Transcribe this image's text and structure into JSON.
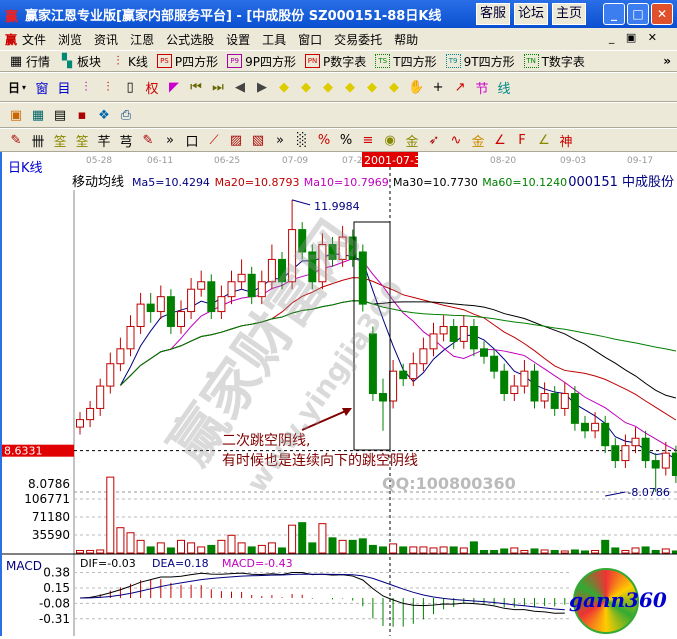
{
  "window": {
    "title": "赢家江恩专业版[赢家内部服务平台] - [中成股份   SZ000151-88日K线",
    "buttons": [
      "客服",
      "论坛",
      "主页"
    ],
    "controls": [
      "minimize",
      "maximize",
      "close"
    ]
  },
  "menu": {
    "items": [
      "文件",
      "浏览",
      "资讯",
      "江恩",
      "公式选股",
      "设置",
      "工具",
      "窗口",
      "交易委托",
      "帮助"
    ]
  },
  "toolbar1": {
    "items": [
      {
        "icon": "table-icon",
        "label": "行情"
      },
      {
        "icon": "blocks-icon",
        "label": "板块"
      },
      {
        "icon": "kline-icon",
        "label": "K线"
      },
      {
        "icon": "PS",
        "label": "P四方形",
        "color": "#c00000"
      },
      {
        "icon": "P9",
        "label": "9P四方形",
        "color": "#a000a0"
      },
      {
        "icon": "PN",
        "label": "P数字表",
        "color": "#c00000"
      },
      {
        "icon": "TS",
        "label": "T四方形",
        "color": "#008000"
      },
      {
        "icon": "T9",
        "label": "9T四方形",
        "color": "#008080"
      },
      {
        "icon": "TN",
        "label": "T数字表",
        "color": "#008000"
      }
    ]
  },
  "toolbar2": {
    "period": "日",
    "icons": [
      "window-icon",
      "notes-icon",
      "chart3-icon",
      "chart9-icon",
      "candle-icon",
      "rights-icon",
      "flag-icon",
      "first-icon",
      "last-icon",
      "left-icon",
      "right-icon",
      "diamond1-icon",
      "diamond2-icon",
      "diamond3-icon",
      "diamond4-icon",
      "diamond5-icon",
      "diamond6-icon",
      "hand-icon",
      "crosshair-icon",
      "line-tool-icon",
      "festival-icon",
      "cycle-icon"
    ]
  },
  "toolbar3": {
    "icons": [
      "calendar-icon",
      "calculator-icon",
      "document-icon",
      "save-icon",
      "network-icon",
      "printer-icon"
    ]
  },
  "toolbar4": {
    "icons": [
      "pen-icon",
      "grid-icon",
      "gold1-icon",
      "gold2-icon",
      "fan-icon",
      "spiral-icon",
      "pen2-icon",
      "box-icon",
      "rays-icon",
      "square-icon",
      "angle-icon",
      "ruler-icon",
      "percent-line-icon",
      "percent-icon",
      "percent2-icon",
      "gold-coin-icon",
      "gold-lines-icon",
      "arrow-icon",
      "wave-icon",
      "gold3-icon",
      "angle1-icon",
      "fibo-icon",
      "angle2-icon",
      "cycle2-icon",
      "gann-icon",
      "angle3-icon"
    ]
  },
  "chart": {
    "period_label": "日K线",
    "indicator_label": "移动均线",
    "stock": "000151 中成股份",
    "date_ticks": [
      "05-28",
      "06-11",
      "06-25",
      "07-09",
      "07-2",
      "08-20",
      "09-03",
      "09-17"
    ],
    "cursor_date": "2001-07-30",
    "ma": [
      {
        "label": "Ma5=10.4294",
        "color": "#000080",
        "period": 5
      },
      {
        "label": "Ma20=10.8793",
        "color": "#c00000",
        "period": 20
      },
      {
        "label": "Ma10=10.7969",
        "color": "#c000c0",
        "period": 10
      },
      {
        "label": "Ma30=10.7730",
        "color": "#000000",
        "period": 30
      },
      {
        "label": "Ma60=10.1240",
        "color": "#008000",
        "period": 60
      }
    ],
    "high_label": "11.9984",
    "low_label": "8.0786",
    "cursor_price": "8.6331",
    "price_axis_label": "8.0786",
    "annotation_line1": "二次跳空阴线,",
    "annotation_line2": "有时候也是连续向下的跳空阴线",
    "qq": "QQ:100800360",
    "volume_ticks": [
      "106771",
      "71180",
      "35590"
    ],
    "macd": {
      "label": "MACD",
      "dif": "DIF=-0.03",
      "dea": "DEA=0.18",
      "macd": "MACD=-0.43",
      "ticks": [
        "0.38",
        "0.15",
        "-0.08",
        "-0.31"
      ]
    },
    "colors": {
      "up": "#c00000",
      "down": "#008000",
      "dif": "#000000",
      "dea": "#000080"
    },
    "logo": "gann360",
    "watermark": "赢家财富网 www.yingjia360.com"
  },
  "chart_data": {
    "type": "candlestick",
    "price_range": [
      8.04,
      12.13
    ],
    "candles_ohlc": [
      [
        8.95,
        9.15,
        8.85,
        9.05
      ],
      [
        9.05,
        9.3,
        8.95,
        9.2
      ],
      [
        9.2,
        9.6,
        9.1,
        9.5
      ],
      [
        9.5,
        9.95,
        9.4,
        9.8
      ],
      [
        9.8,
        10.15,
        9.7,
        10.0
      ],
      [
        10.0,
        10.45,
        9.9,
        10.3
      ],
      [
        10.3,
        10.75,
        10.2,
        10.6
      ],
      [
        10.6,
        10.75,
        10.35,
        10.5
      ],
      [
        10.5,
        10.85,
        10.4,
        10.7
      ],
      [
        10.7,
        10.8,
        10.2,
        10.3
      ],
      [
        10.3,
        10.65,
        10.2,
        10.5
      ],
      [
        10.5,
        10.95,
        10.4,
        10.8
      ],
      [
        10.8,
        11.05,
        10.7,
        10.9
      ],
      [
        10.9,
        11.0,
        10.4,
        10.5
      ],
      [
        10.5,
        10.85,
        10.4,
        10.7
      ],
      [
        10.7,
        11.05,
        10.6,
        10.9
      ],
      [
        10.9,
        11.2,
        10.8,
        11.0
      ],
      [
        11.0,
        11.1,
        10.6,
        10.7
      ],
      [
        10.7,
        11.05,
        10.6,
        10.9
      ],
      [
        10.9,
        11.4,
        10.8,
        11.2
      ],
      [
        11.2,
        11.3,
        10.8,
        10.9
      ],
      [
        10.9,
        11.9984,
        10.8,
        11.6
      ],
      [
        11.6,
        11.7,
        11.2,
        11.3
      ],
      [
        11.3,
        11.4,
        10.8,
        10.9
      ],
      [
        10.9,
        11.55,
        10.8,
        11.4
      ],
      [
        11.4,
        11.5,
        11.1,
        11.2
      ],
      [
        11.2,
        11.65,
        11.1,
        11.5
      ],
      [
        11.5,
        11.6,
        11.1,
        11.2
      ],
      [
        11.3,
        11.4,
        10.5,
        10.6
      ],
      [
        10.2,
        10.3,
        9.3,
        9.4
      ],
      [
        9.4,
        9.6,
        8.9,
        9.3
      ],
      [
        9.3,
        9.85,
        9.2,
        9.7
      ],
      [
        9.7,
        9.8,
        9.5,
        9.6
      ],
      [
        9.6,
        9.95,
        9.5,
        9.8
      ],
      [
        9.8,
        10.15,
        9.7,
        10.0
      ],
      [
        10.0,
        10.35,
        9.9,
        10.2
      ],
      [
        10.2,
        10.45,
        10.1,
        10.3
      ],
      [
        10.3,
        10.4,
        10.0,
        10.1
      ],
      [
        10.1,
        10.45,
        10.0,
        10.3
      ],
      [
        10.3,
        10.4,
        9.9,
        10.0
      ],
      [
        10.0,
        10.1,
        9.8,
        9.9
      ],
      [
        9.9,
        10.0,
        9.6,
        9.7
      ],
      [
        9.7,
        9.8,
        9.3,
        9.4
      ],
      [
        9.4,
        9.65,
        9.3,
        9.5
      ],
      [
        9.5,
        9.85,
        9.4,
        9.7
      ],
      [
        9.7,
        9.8,
        9.2,
        9.3
      ],
      [
        9.3,
        9.55,
        9.2,
        9.4
      ],
      [
        9.4,
        9.5,
        9.1,
        9.2
      ],
      [
        9.2,
        9.55,
        9.1,
        9.4
      ],
      [
        9.4,
        9.5,
        8.9,
        9.0
      ],
      [
        9.0,
        9.1,
        8.8,
        8.9
      ],
      [
        8.9,
        9.15,
        8.8,
        9.0
      ],
      [
        9.0,
        9.1,
        8.6,
        8.7
      ],
      [
        8.7,
        8.8,
        8.4,
        8.5
      ],
      [
        8.5,
        8.85,
        8.4,
        8.7
      ],
      [
        8.7,
        8.95,
        8.6,
        8.8
      ],
      [
        8.8,
        8.9,
        8.4,
        8.5
      ],
      [
        8.5,
        8.6,
        8.0786,
        8.4
      ],
      [
        8.4,
        8.75,
        8.3,
        8.6
      ],
      [
        8.6,
        8.7,
        8.2,
        8.3
      ]
    ],
    "volume": [
      5000,
      5000,
      6000,
      150000,
      50000,
      40000,
      25000,
      12000,
      20000,
      10000,
      25000,
      20000,
      12000,
      15000,
      25000,
      35000,
      20000,
      12000,
      15000,
      20000,
      10000,
      55000,
      60000,
      20000,
      58000,
      30000,
      25000,
      25000,
      28000,
      15000,
      12000,
      18000,
      12000,
      12000,
      12000,
      10000,
      12000,
      12000,
      10000,
      22000,
      5000,
      5000,
      8000,
      10000,
      5000,
      8000,
      6000,
      5000,
      4000,
      6000,
      4000,
      5000,
      25000,
      10000,
      5000,
      10000,
      12000,
      5000,
      8000,
      4000
    ],
    "volume_ticks": [
      35590,
      71180,
      106771
    ],
    "macd_ticks": [
      0.38,
      0.15,
      -0.08,
      -0.31
    ]
  }
}
